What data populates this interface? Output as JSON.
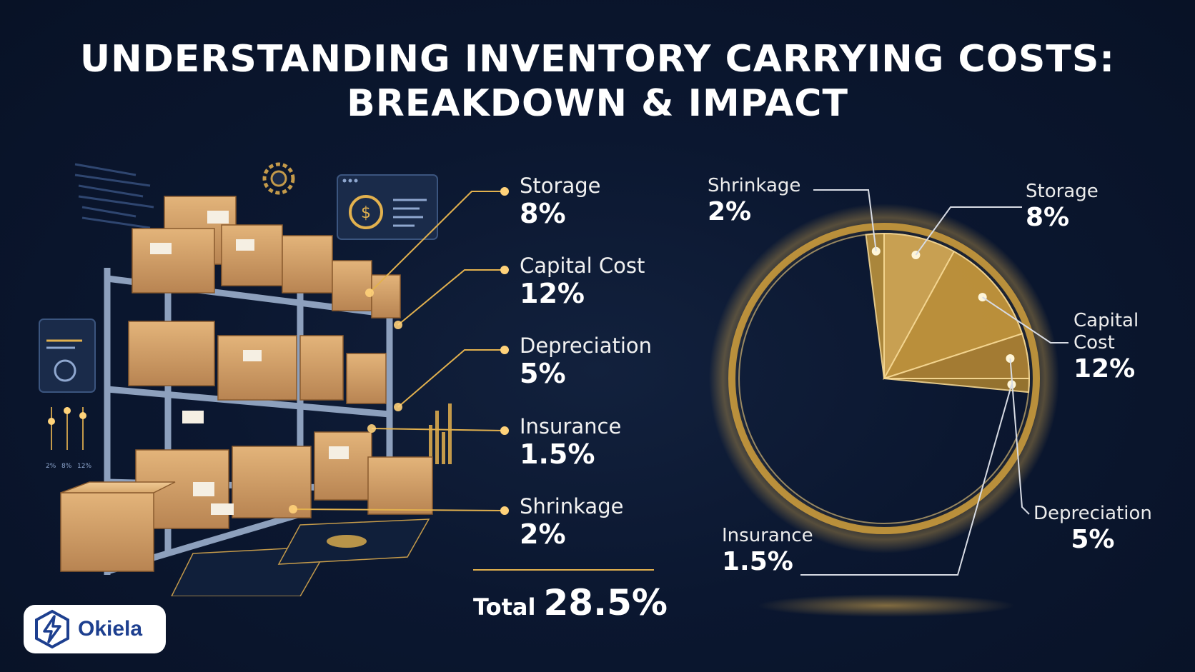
{
  "title": {
    "line1": "UNDERSTANDING INVENTORY CARRYING COSTS:",
    "line2": "BREAKDOWN & IMPACT"
  },
  "left_panel": {
    "items": [
      {
        "name": "Storage",
        "value": "8%"
      },
      {
        "name": "Capital Cost",
        "value": "12%"
      },
      {
        "name": "Depreciation",
        "value": "5%"
      },
      {
        "name": "Insurance",
        "value": "1.5%"
      },
      {
        "name": "Shrinkage",
        "value": "2%"
      }
    ],
    "total_label": "Total",
    "total_value": "28.5%"
  },
  "illustration": {
    "gauge_labels": [
      "2%",
      "8%",
      "12%"
    ],
    "dollar_symbol": "$"
  },
  "chart_data": {
    "type": "pie",
    "slices": [
      {
        "label": "Storage",
        "value": 8,
        "value_label": "8%"
      },
      {
        "label": "Capital Cost",
        "value": 12,
        "value_label": "12%"
      },
      {
        "label": "Depreciation",
        "value": 5,
        "value_label": "5%"
      },
      {
        "label": "Insurance",
        "value": 1.5,
        "value_label": "1.5%"
      },
      {
        "label": "Shrinkage",
        "value": 2,
        "value_label": "2%"
      }
    ],
    "total": 28.5,
    "whole": 100
  },
  "brand": {
    "name": "Okiela"
  },
  "colors": {
    "background": "#0b1730",
    "accent_gold": "#e2b14e",
    "slice_fill": "#c99a3c",
    "logo_blue": "#1d3f8f"
  }
}
